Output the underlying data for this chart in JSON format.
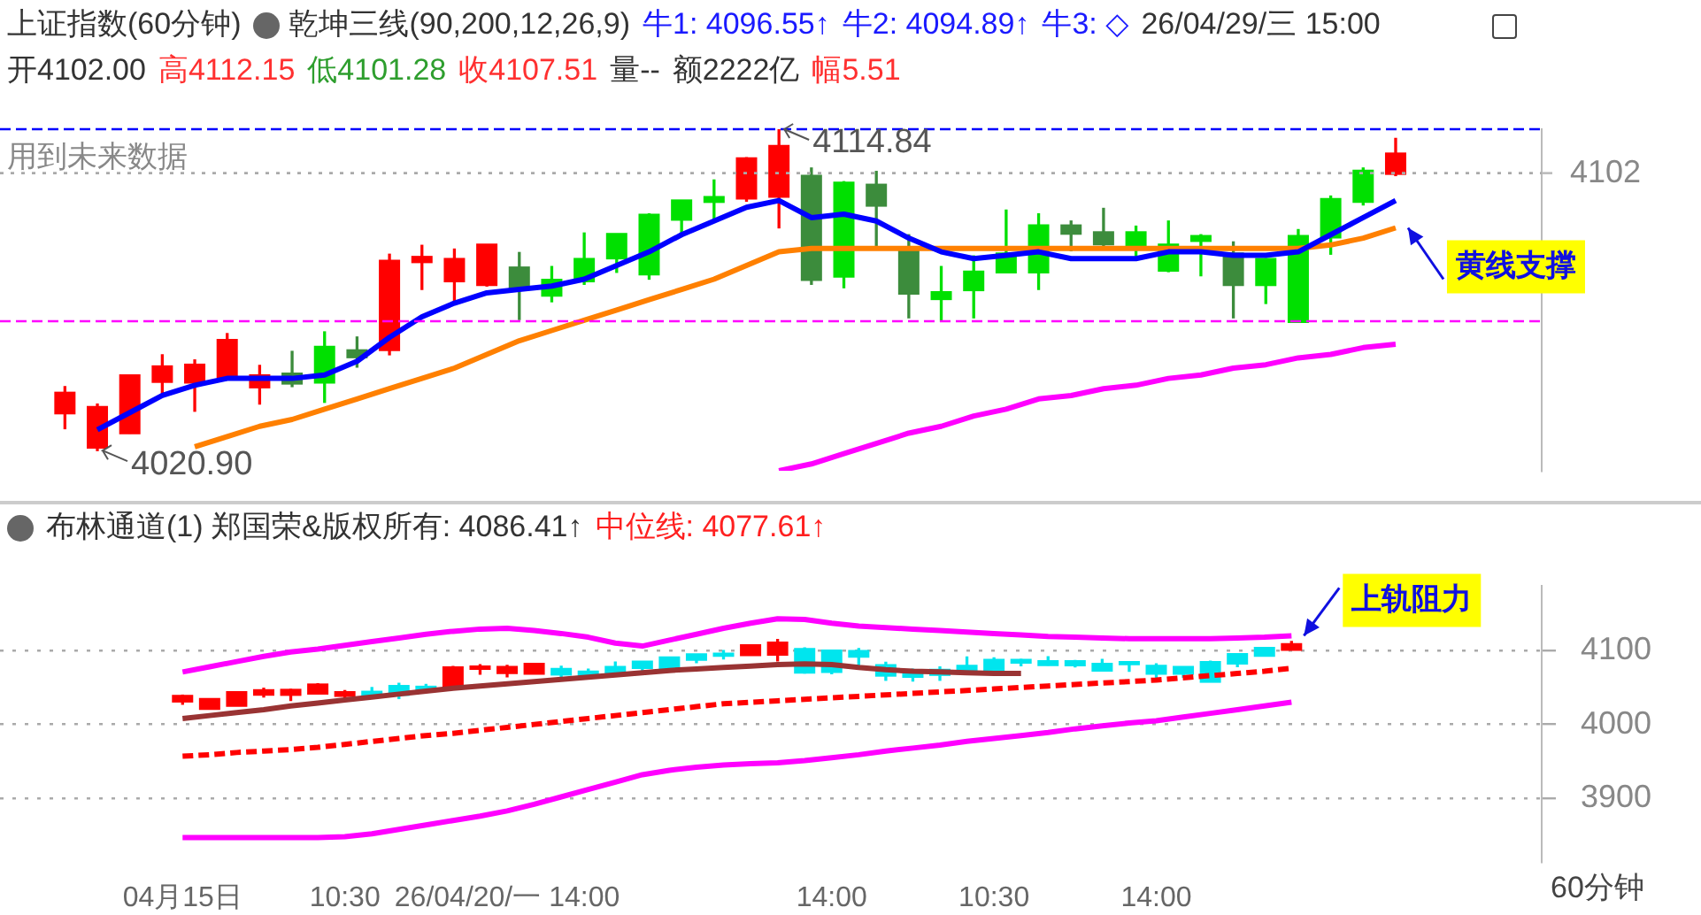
{
  "chart_data": [
    {
      "type": "candlestick",
      "title": "上证指数(60分钟)",
      "subtitle": "乾坤三线(90,200,12,26,9)",
      "annotations": [
        "牛1: 4096.55↑",
        "牛2: 4094.89↑",
        "牛3: ◇",
        "26/04/29/三 15:00",
        "开4102.00",
        "高4112.15",
        "低4101.28",
        "收4107.51",
        "量--",
        "额2222亿",
        "幅5.51",
        "用到未来数据",
        "黄线支撑",
        {
          "text": "4114.84",
          "y": 4114.84
        },
        {
          "text": "4020.90",
          "y": 4020.9
        }
      ],
      "categories": [
        null,
        null,
        null,
        null,
        null,
        null,
        null,
        null,
        null,
        null,
        null,
        null,
        null,
        null,
        null,
        null,
        null,
        null,
        null,
        null,
        null,
        null,
        null,
        null,
        null,
        null,
        null,
        null,
        null,
        null,
        null,
        null,
        null,
        null,
        null,
        null,
        null,
        null,
        null,
        null,
        null,
        null
      ],
      "ohlc": [
        [
          4032,
          4039.6,
          4027.3,
          4037.6
        ],
        [
          4022,
          4034.5,
          4020.9,
          4033.4
        ],
        [
          4026.2,
          4043,
          4026,
          4042.7
        ],
        [
          4041.2,
          4048.9,
          4037.1,
          4045.3
        ],
        [
          4041,
          4047.4,
          4032.4,
          4045.8
        ],
        [
          4042.7,
          4055.1,
          4042,
          4053
        ],
        [
          4039.6,
          4045.8,
          4034.5,
          4042.7
        ],
        [
          4043.2,
          4049.9,
          4039.6,
          4040.7
        ],
        [
          4051,
          4055.6,
          4035,
          4041
        ],
        [
          4050,
          4054.1,
          4045.3,
          4048.4
        ],
        [
          4050.5,
          4078.3,
          4048.9,
          4076.2
        ],
        [
          4076.2,
          4080.9,
          4068,
          4077.3
        ],
        [
          4070.6,
          4079.8,
          4064.4,
          4076.7
        ],
        [
          4069.5,
          4081,
          4069,
          4080.9
        ],
        [
          4074.2,
          4078.8,
          4059.2,
          4068.5
        ],
        [
          4070.6,
          4074.7,
          4064.4,
          4066.4
        ],
        [
          4076.7,
          4084.5,
          4069.5,
          4070.6
        ],
        [
          4084,
          4084,
          4073,
          4077.3
        ],
        [
          4089.6,
          4090.1,
          4071,
          4072.6
        ],
        [
          4093.8,
          4093.8,
          4083.5,
          4088.6
        ],
        [
          4094.8,
          4100,
          4088.6,
          4093.8
        ],
        [
          4094.8,
          4106.5,
          4093.8,
          4106.1
        ],
        [
          4095.3,
          4114.84,
          4086,
          4109.7
        ],
        [
          4101,
          4103.5,
          4069.5,
          4071
        ],
        [
          4099,
          4099.5,
          4068.5,
          4072
        ],
        [
          4098.4,
          4102.5,
          4080.4,
          4092.7
        ],
        [
          4079.3,
          4084,
          4059.7,
          4067
        ],
        [
          4067,
          4074.7,
          4058.7,
          4065.4
        ],
        [
          4073,
          4077.8,
          4059.7,
          4068
        ],
        [
          4078.3,
          4091.2,
          4073,
          4073.2
        ],
        [
          4086.5,
          4090.1,
          4068,
          4073.2
        ],
        [
          4086.5,
          4088,
          4079.3,
          4084.5
        ],
        [
          4084.5,
          4091.7,
          4080.4,
          4081.4
        ],
        [
          4084.5,
          4086.5,
          4077.8,
          4081
        ],
        [
          4080.9,
          4088,
          4073.2,
          4073.7
        ],
        [
          4083.4,
          4084,
          4072,
          4082.4
        ],
        [
          4078.3,
          4081.9,
          4059.7,
          4069.5
        ],
        [
          4076.7,
          4077,
          4063.9,
          4069.5
        ],
        [
          4083.4,
          4085.5,
          4058.7,
          4058.7
        ],
        [
          4094.2,
          4095.3,
          4078.3,
          4083.4
        ],
        [
          4102.5,
          4103.5,
          4092.7,
          4093.8
        ],
        [
          4102,
          4112.15,
          4101.28,
          4107.51
        ]
      ],
      "colors": [
        "#ff0000",
        "#ff0000",
        "#ff0000",
        "#ff0000",
        "#ff0000",
        "#ff0000",
        "#ff0000",
        "#3c8c3c",
        "#00e000",
        "#3c8c3c",
        "#ff0000",
        "#ff0000",
        "#ff0000",
        "#ff0000",
        "#3c8c3c",
        "#00e000",
        "#00e000",
        "#00e000",
        "#00e000",
        "#00e000",
        "#00e000",
        "#ff0000",
        "#ff0000",
        "#3c8c3c",
        "#00e000",
        "#3c8c3c",
        "#3c8c3c",
        "#00e000",
        "#00e000",
        "#00e000",
        "#00e000",
        "#3c8c3c",
        "#3c8c3c",
        "#00e000",
        "#00e000",
        "#00e000",
        "#3c8c3c",
        "#00e000",
        "#00e000",
        "#00e000",
        "#00e000",
        "#ff0000"
      ],
      "series": [
        {
          "type": "line",
          "color": "#0000ff",
          "values": [
            null,
            4027,
            4032,
            4037,
            4040,
            4042,
            4042,
            4042,
            4043,
            4047,
            4054,
            4060,
            4064,
            4067,
            4068,
            4069,
            4071,
            4075,
            4079,
            4084,
            4088,
            4092,
            4094,
            4089,
            4090,
            4088,
            4083,
            4079,
            4077,
            4078,
            4079,
            4077,
            4077,
            4077,
            4079,
            4079,
            4078,
            4078,
            4079,
            4084,
            4089,
            4094
          ]
        },
        {
          "type": "line",
          "color": "#ff8000",
          "values": [
            null,
            null,
            null,
            null,
            4022,
            4025,
            4028,
            4030,
            4033,
            4036,
            4039,
            4042,
            4045,
            4049,
            4053,
            4056,
            4059,
            4062,
            4065,
            4068,
            4071,
            4075,
            4079,
            4080,
            4080,
            4080,
            4080,
            4080,
            4080,
            4080,
            4080,
            4080,
            4080,
            4080,
            4080,
            4080,
            4080,
            4080,
            4080,
            4081,
            4083,
            4086
          ]
        },
        {
          "type": "line",
          "color": "#ff00ff",
          "values": [
            null,
            null,
            null,
            null,
            null,
            null,
            null,
            null,
            null,
            null,
            null,
            null,
            null,
            null,
            null,
            null,
            null,
            null,
            null,
            null,
            null,
            null,
            4015,
            4017,
            4020,
            4023,
            4026,
            4028,
            4031,
            4033,
            4036,
            4037,
            4039,
            4040,
            4042,
            4043,
            4045,
            4046,
            4048,
            4049,
            4051,
            4052
          ]
        }
      ],
      "ref_lines": [
        {
          "axis": "y",
          "value": 4114.84,
          "color": "#0000ff",
          "line_style": "dashed"
        },
        {
          "axis": "y",
          "value": 4102,
          "label": "4102",
          "color": "#aaaaaa",
          "line_style": "dotted"
        },
        {
          "axis": "y",
          "value": 4058.7,
          "color": "#ff00ff",
          "line_style": "dashed"
        }
      ],
      "legend": false,
      "tick_labels": false
    },
    {
      "type": "candlestick",
      "title": "布林通道(1) 郑国荣&版权所有: 4086.41↑",
      "xlabel": "60分钟",
      "annotations": [
        "中位线: 4077.61↑",
        "上轨阻力"
      ],
      "categories": [
        "04月15日",
        null,
        null,
        null,
        null,
        null,
        "10:30",
        null,
        null,
        null,
        null,
        null,
        "26/04/20/一 14:00",
        null,
        null,
        null,
        null,
        null,
        null,
        null,
        null,
        null,
        null,
        null,
        "14:00",
        null,
        null,
        null,
        null,
        null,
        "10:30",
        null,
        null,
        null,
        null,
        null,
        "14:00",
        null,
        null,
        null,
        null,
        null
      ],
      "ohlc": [
        [
          4032,
          4039.6,
          4027.3,
          4037.6
        ],
        [
          4022,
          4034.5,
          4020.9,
          4033.4
        ],
        [
          4026.2,
          4043,
          4026,
          4042.7
        ],
        [
          4041.2,
          4048.9,
          4037.1,
          4045.3
        ],
        [
          4041,
          4047.4,
          4032.4,
          4045.8
        ],
        [
          4042.7,
          4055.1,
          4042,
          4053
        ],
        [
          4039.6,
          4045.8,
          4034.5,
          4042.7
        ],
        [
          4043.2,
          4049.9,
          4039.6,
          4040.7
        ],
        [
          4051,
          4055.6,
          4035,
          4041
        ],
        [
          4050,
          4054.1,
          4045.3,
          4048.4
        ],
        [
          4050.5,
          4078.3,
          4048.9,
          4076.2
        ],
        [
          4076.2,
          4080.9,
          4068,
          4077.3
        ],
        [
          4070.6,
          4079.8,
          4064.4,
          4076.7
        ],
        [
          4069.5,
          4081,
          4069,
          4080.9
        ],
        [
          4074.2,
          4078.8,
          4059.2,
          4068.5
        ],
        [
          4070.6,
          4074.7,
          4064.4,
          4066.4
        ],
        [
          4076.7,
          4084.5,
          4069.5,
          4070.6
        ],
        [
          4084,
          4084,
          4073,
          4077.3
        ],
        [
          4089.6,
          4090.1,
          4071,
          4072.6
        ],
        [
          4093.8,
          4093.8,
          4083.5,
          4088.6
        ],
        [
          4094.8,
          4100,
          4088.6,
          4093.8
        ],
        [
          4094.8,
          4106.5,
          4093.8,
          4106.1
        ],
        [
          4095.3,
          4114.84,
          4086,
          4109.7
        ],
        [
          4101,
          4103.5,
          4069.5,
          4071
        ],
        [
          4099,
          4099.5,
          4068.5,
          4072
        ],
        [
          4098.4,
          4102.5,
          4080.4,
          4092.7
        ],
        [
          4079.3,
          4084,
          4059.7,
          4067
        ],
        [
          4067,
          4074.7,
          4058.7,
          4065.4
        ],
        [
          4073,
          4077.8,
          4059.7,
          4068
        ],
        [
          4078.3,
          4091.2,
          4073,
          4073.2
        ],
        [
          4086.5,
          4090.1,
          4068,
          4073.2
        ],
        [
          4086.5,
          4088,
          4079.3,
          4084.5
        ],
        [
          4084.5,
          4091.7,
          4080.4,
          4081.4
        ],
        [
          4084.5,
          4086.5,
          4077.8,
          4081
        ],
        [
          4080.9,
          4088,
          4073.2,
          4073.7
        ],
        [
          4083.4,
          4084,
          4072,
          4082.4
        ],
        [
          4078.3,
          4081.9,
          4059.7,
          4069.5
        ],
        [
          4076.7,
          4077,
          4063.9,
          4069.5
        ],
        [
          4083.4,
          4085.5,
          4058.7,
          4058.7
        ],
        [
          4094.2,
          4095.3,
          4078.3,
          4083.4
        ],
        [
          4102.5,
          4103.5,
          4092.7,
          4093.8
        ],
        [
          4102,
          4112.15,
          4101.28,
          4107.51
        ]
      ],
      "colors": [
        "#ff0000",
        "#ff0000",
        "#ff0000",
        "#ff0000",
        "#ff0000",
        "#ff0000",
        "#ff0000",
        "#00e5ee",
        "#00e5ee",
        "#00e5ee",
        "#ff0000",
        "#ff0000",
        "#ff0000",
        "#ff0000",
        "#00e5ee",
        "#00e5ee",
        "#00e5ee",
        "#00e5ee",
        "#00e5ee",
        "#00e5ee",
        "#00e5ee",
        "#ff0000",
        "#ff0000",
        "#00e5ee",
        "#00e5ee",
        "#00e5ee",
        "#00e5ee",
        "#00e5ee",
        "#00e5ee",
        "#00e5ee",
        "#00e5ee",
        "#00e5ee",
        "#00e5ee",
        "#00e5ee",
        "#00e5ee",
        "#00e5ee",
        "#00e5ee",
        "#00e5ee",
        "#00e5ee",
        "#00e5ee",
        "#00e5ee",
        "#ff0000"
      ],
      "series": [
        {
          "type": "line",
          "color": "#ff00ff",
          "values": [
            4071,
            4078,
            4085,
            4092,
            4098,
            4102,
            4107,
            4112,
            4117,
            4122,
            4126,
            4129,
            4130,
            4127,
            4123,
            4118,
            4110,
            4106,
            4114,
            4122,
            4130,
            4137,
            4143,
            4142,
            4137,
            4133,
            4131,
            4129,
            4127,
            4125,
            4123,
            4121,
            4119,
            4118,
            4117,
            4116,
            4116,
            4116,
            4116,
            4117,
            4118,
            4120
          ]
        },
        {
          "type": "line",
          "color": "#993333",
          "values": [
            4008,
            4012,
            4016,
            4020,
            4025,
            4029,
            4033,
            4037,
            4041,
            4045,
            4049,
            4052,
            4055,
            4058,
            4061,
            4064,
            4067,
            4070,
            4073,
            4075,
            4077,
            4079,
            4081,
            4082,
            4081,
            4077,
            4074,
            4072,
            4071,
            4070,
            4069,
            4069,
            null,
            null,
            null,
            null,
            null,
            null,
            null,
            null,
            null,
            null
          ]
        },
        {
          "type": "line",
          "color": "#ff0000",
          "line_style": "dashed",
          "values": [
            3957,
            3959,
            3962,
            3964,
            3966,
            3969,
            3973,
            3977,
            3981,
            3985,
            3988,
            3992,
            3996,
            4000,
            4004,
            4008,
            4012,
            4016,
            4020,
            4024,
            4028,
            4030,
            4032,
            4034,
            4036,
            4038,
            4040,
            4042,
            4044,
            4046,
            4048,
            4050,
            4052,
            4054,
            4056,
            4058,
            4060,
            4063,
            4066,
            4069,
            4072,
            4076
          ]
        },
        {
          "type": "line",
          "color": "#ff00ff",
          "values": [
            3847,
            3847,
            3847,
            3847,
            3847,
            3847,
            3848,
            3852,
            3858,
            3864,
            3870,
            3876,
            3883,
            3892,
            3902,
            3912,
            3922,
            3932,
            3938,
            3942,
            3945,
            3947,
            3948,
            3951,
            3955,
            3959,
            3964,
            3968,
            3972,
            3977,
            3981,
            3985,
            3989,
            3994,
            3998,
            4002,
            4005,
            4010,
            4015,
            4020,
            4025,
            4030
          ]
        }
      ],
      "ylim": [
        3814,
        4188
      ],
      "yticks": [
        3900,
        4000,
        4100
      ],
      "grid": "y",
      "legend": false
    }
  ]
}
